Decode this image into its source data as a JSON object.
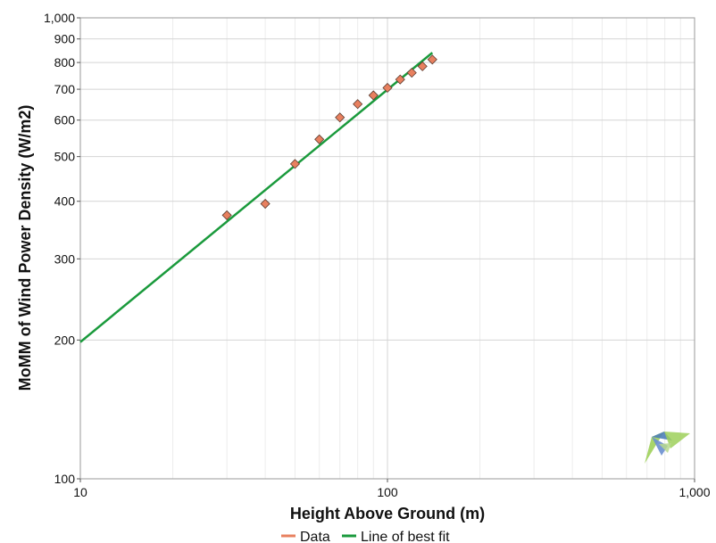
{
  "chart_data": {
    "type": "scatter",
    "xlabel": "Height Above Ground (m)",
    "ylabel": "MoMM of Wind Power Density (W/m2)",
    "xscale": "log",
    "yscale": "log",
    "xlim": [
      10,
      1000
    ],
    "ylim": [
      100,
      1000
    ],
    "grid": true,
    "legend_position": "bottom-center",
    "x_ticks": [
      {
        "value": 10,
        "label": "10"
      },
      {
        "value": 100,
        "label": "100"
      },
      {
        "value": 1000,
        "label": "1,000"
      }
    ],
    "y_ticks": [
      {
        "value": 100,
        "label": "100"
      },
      {
        "value": 200,
        "label": "200"
      },
      {
        "value": 300,
        "label": "300"
      },
      {
        "value": 400,
        "label": "400"
      },
      {
        "value": 500,
        "label": "500"
      },
      {
        "value": 600,
        "label": "600"
      },
      {
        "value": 700,
        "label": "700"
      },
      {
        "value": 800,
        "label": "800"
      },
      {
        "value": 900,
        "label": "900"
      },
      {
        "value": 1000,
        "label": "1,000"
      }
    ],
    "series": [
      {
        "name": "Data",
        "kind": "scatter",
        "color": "#e8805f",
        "marker": "diamond",
        "points": [
          {
            "x": 30,
            "y": 373
          },
          {
            "x": 40,
            "y": 395
          },
          {
            "x": 50,
            "y": 482
          },
          {
            "x": 60,
            "y": 545
          },
          {
            "x": 70,
            "y": 608
          },
          {
            "x": 80,
            "y": 650
          },
          {
            "x": 90,
            "y": 679
          },
          {
            "x": 100,
            "y": 705
          },
          {
            "x": 110,
            "y": 735
          },
          {
            "x": 120,
            "y": 760
          },
          {
            "x": 130,
            "y": 785
          },
          {
            "x": 140,
            "y": 812
          }
        ]
      },
      {
        "name": "Line of best fit",
        "kind": "line",
        "color": "#1a9a3c",
        "points": [
          {
            "x": 10,
            "y": 198
          },
          {
            "x": 140,
            "y": 840
          }
        ]
      }
    ]
  },
  "watermark": {
    "icon": "windographer-logo-icon",
    "colors": [
      "#9ed05a",
      "#4f7fb8",
      "#6a8fcf"
    ]
  }
}
